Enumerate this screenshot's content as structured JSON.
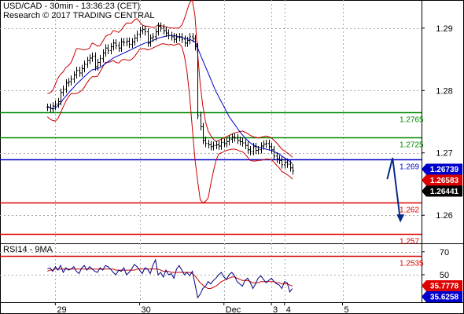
{
  "header": {
    "title": "USD/CAD - 30min - 13:36:23 (CET)",
    "copyright": "Research © 2017 TRADING CENTRAL"
  },
  "colors": {
    "support": "#dd0000",
    "resistance": "#008800",
    "pivot": "#0000cc",
    "price": "#000000",
    "bands": "#cc0000",
    "ma": "#0000cc",
    "rsi": "#000080",
    "rsi_ma": "#cc0000",
    "grid": "#aaaaaa"
  },
  "chart_data": [
    {
      "type": "line",
      "title": "USD/CAD - 30min",
      "ylim": [
        1.2555,
        1.2945
      ],
      "yticks": [
        1.29,
        1.28,
        1.27,
        1.26
      ],
      "ytick_labels": [
        "1.29",
        "1.28",
        "1.27",
        "1.26"
      ],
      "xaxis_labels": [
        {
          "label": "29",
          "x": 3
        },
        {
          "label": "30",
          "x": 35
        },
        {
          "label": "Dec",
          "x": 67
        },
        {
          "label": "3",
          "x": 85
        },
        {
          "label": "4",
          "x": 90
        },
        {
          "label": "5",
          "x": 112
        }
      ],
      "xlim": [
        -18,
        142
      ],
      "grid": true,
      "price_closes": [
        1.2773,
        1.2771,
        1.2775,
        1.2778,
        1.2782,
        1.2797,
        1.2802,
        1.2812,
        1.2814,
        1.2818,
        1.2825,
        1.2832,
        1.2828,
        1.2835,
        1.2842,
        1.2848,
        1.2852,
        1.2855,
        1.2838,
        1.2845,
        1.2851,
        1.286,
        1.2868,
        1.2864,
        1.287,
        1.2876,
        1.2872,
        1.2868,
        1.2878,
        1.2877,
        1.2879,
        1.2874,
        1.2878,
        1.2884,
        1.289,
        1.2896,
        1.2898,
        1.2894,
        1.2876,
        1.2884,
        1.2886,
        1.2894,
        1.2903,
        1.29,
        1.2896,
        1.2892,
        1.2888,
        1.2886,
        1.2882,
        1.2885,
        1.2886,
        1.2882,
        1.2876,
        1.288,
        1.2886,
        1.2883,
        1.287,
        1.276,
        1.2742,
        1.272,
        1.2715,
        1.2713,
        1.271,
        1.2712,
        1.2713,
        1.2711,
        1.2717,
        1.2715,
        1.2718,
        1.2722,
        1.2725,
        1.2724,
        1.272,
        1.2718,
        1.2716,
        1.2712,
        1.2705,
        1.2702,
        1.271,
        1.2704,
        1.2705,
        1.2711,
        1.2714,
        1.2715,
        1.271,
        1.2705,
        1.2695,
        1.269,
        1.2688,
        1.2681,
        1.2685,
        1.2682,
        1.2676,
        1.2671
      ],
      "upper_band": [
        1.2795,
        1.2796,
        1.28,
        1.281,
        1.282,
        1.2826,
        1.283,
        1.2837,
        1.284,
        1.2845,
        1.2855,
        1.2867,
        1.2867,
        1.2866,
        1.2865,
        1.2866,
        1.2868,
        1.2876,
        1.2874,
        1.2871,
        1.2872,
        1.2879,
        1.2886,
        1.2889,
        1.289,
        1.2896,
        1.2895,
        1.2893,
        1.2897,
        1.2903,
        1.2908,
        1.2908,
        1.2908,
        1.2913,
        1.2915,
        1.291,
        1.2905,
        1.2903,
        1.2903,
        1.2902,
        1.2901,
        1.2902,
        1.2905,
        1.2904,
        1.2903,
        1.2902,
        1.2901,
        1.29,
        1.29,
        1.29,
        1.29,
        1.2905,
        1.2915,
        1.2928,
        1.2941,
        1.2945,
        1.292,
        1.286,
        1.281,
        1.2775,
        1.275,
        1.2735,
        1.2728,
        1.2722,
        1.2718,
        1.272,
        1.2722,
        1.2724,
        1.2726,
        1.2728,
        1.273,
        1.2732,
        1.2733,
        1.2734,
        1.2735,
        1.2733,
        1.2731,
        1.2728,
        1.2726,
        1.2725,
        1.2724,
        1.2725,
        1.2726,
        1.2727,
        1.2726,
        1.2724,
        1.272,
        1.2716,
        1.2711,
        1.2706,
        1.2703,
        1.27,
        1.2697,
        1.2693
      ],
      "lower_band": [
        1.2758,
        1.2754,
        1.2752,
        1.2751,
        1.2755,
        1.2764,
        1.2774,
        1.2783,
        1.279,
        1.2795,
        1.2795,
        1.2795,
        1.2797,
        1.28,
        1.2805,
        1.2812,
        1.2818,
        1.2822,
        1.2822,
        1.2823,
        1.283,
        1.2838,
        1.2845,
        1.2845,
        1.2846,
        1.2848,
        1.2845,
        1.2844,
        1.2848,
        1.285,
        1.2849,
        1.2848,
        1.285,
        1.2854,
        1.286,
        1.2866,
        1.2867,
        1.2867,
        1.2865,
        1.2866,
        1.2868,
        1.287,
        1.2872,
        1.2874,
        1.2875,
        1.2874,
        1.2873,
        1.2874,
        1.2872,
        1.2874,
        1.2875,
        1.287,
        1.2855,
        1.283,
        1.279,
        1.274,
        1.269,
        1.2655,
        1.2625,
        1.262,
        1.2622,
        1.2628,
        1.265,
        1.267,
        1.2688,
        1.2698,
        1.27,
        1.2702,
        1.2704,
        1.2705,
        1.2706,
        1.2706,
        1.2705,
        1.2703,
        1.2702,
        1.2698,
        1.2693,
        1.2688,
        1.2687,
        1.2687,
        1.2688,
        1.2688,
        1.2689,
        1.269,
        1.269,
        1.2689,
        1.2685,
        1.268,
        1.2676,
        1.267,
        1.2668,
        1.2665,
        1.2662,
        1.2658
      ],
      "moving_average": [
        1.2775,
        1.2772,
        1.277,
        1.2772,
        1.2776,
        1.278,
        1.2786,
        1.2791,
        1.2796,
        1.2801,
        1.2805,
        1.281,
        1.2814,
        1.2818,
        1.2822,
        1.2826,
        1.283,
        1.2833,
        1.2834,
        1.2835,
        1.2837,
        1.284,
        1.2843,
        1.2846,
        1.2849,
        1.2852,
        1.2854,
        1.2856,
        1.2858,
        1.286,
        1.2862,
        1.2864,
        1.2866,
        1.2868,
        1.287,
        1.2872,
        1.2874,
        1.2876,
        1.2877,
        1.2878,
        1.288,
        1.2882,
        1.2884,
        1.2885,
        1.2886,
        1.2887,
        1.2888,
        1.2888,
        1.2888,
        1.2887,
        1.2886,
        1.2885,
        1.2884,
        1.2883,
        1.2882,
        1.288,
        1.2878,
        1.2868,
        1.2858,
        1.2848,
        1.2838,
        1.2828,
        1.2818,
        1.2808,
        1.2798,
        1.279,
        1.2782,
        1.2774,
        1.2766,
        1.2758,
        1.2752,
        1.2746,
        1.274,
        1.2734,
        1.2729,
        1.2724,
        1.272,
        1.2716,
        1.2713,
        1.2711,
        1.2709,
        1.2708,
        1.2707,
        1.2706,
        1.2705,
        1.2704,
        1.2702,
        1.27,
        1.2698,
        1.2695,
        1.2692,
        1.2689,
        1.2686,
        1.2683
      ],
      "levels": [
        {
          "value": 1.2765,
          "label": "1.2765",
          "kind": "resistance"
        },
        {
          "value": 1.2725,
          "label": "1.2725",
          "kind": "resistance"
        },
        {
          "value": 1.269,
          "label": "1.269",
          "kind": "pivot"
        },
        {
          "value": 1.262,
          "label": "1.262",
          "kind": "support"
        },
        {
          "value": 1.257,
          "label": "1.257",
          "kind": "support"
        },
        {
          "value": 1.2535,
          "label": "1.2535",
          "kind": "support"
        }
      ],
      "price_tags": [
        {
          "value": 1.26739,
          "label": "1.26739",
          "color": "#0000cc"
        },
        {
          "value": 1.26583,
          "label": "1.26583",
          "color": "#dd0000"
        },
        {
          "value": 1.26441,
          "label": "1.26441",
          "color": "#000000"
        }
      ],
      "scenario_arrow": [
        {
          "x": 129,
          "y": 1.2658
        },
        {
          "x": 131,
          "y": 1.2692
        },
        {
          "x": 134,
          "y": 1.259
        }
      ]
    },
    {
      "type": "line",
      "title": "RSI14 - 9MA",
      "ylim": [
        26,
        76
      ],
      "yticks": [
        70,
        50
      ],
      "ytick_labels": [
        "70",
        "50"
      ],
      "xlim": [
        -18,
        142
      ],
      "series": [
        {
          "name": "RSI14",
          "values": [
            55,
            56,
            53,
            57,
            54,
            58,
            52,
            56,
            54,
            55,
            57,
            53,
            51,
            56,
            58,
            54,
            57,
            55,
            53,
            52,
            56,
            54,
            58,
            57,
            55,
            52,
            50,
            54,
            53,
            56,
            50,
            52,
            55,
            59,
            57,
            54,
            51,
            56,
            55,
            51,
            58,
            63,
            50,
            52,
            48,
            54,
            50,
            51,
            47,
            55,
            58,
            54,
            50,
            52,
            49,
            53,
            42,
            30,
            33,
            38,
            40,
            44,
            42,
            45,
            47,
            50,
            52,
            48,
            46,
            50,
            52,
            49,
            44,
            42,
            40,
            45,
            47,
            43,
            38,
            42,
            47,
            49,
            46,
            43,
            45,
            47,
            44,
            42,
            41,
            38,
            44,
            43,
            35,
            38
          ]
        },
        {
          "name": "9MA",
          "values": [
            53,
            54,
            54,
            55,
            55,
            55,
            55,
            55,
            55,
            55,
            55,
            55,
            55,
            55,
            55,
            55,
            55,
            55,
            55,
            55,
            55,
            55,
            55,
            55,
            55,
            55,
            54,
            54,
            54,
            54,
            54,
            54,
            54,
            54,
            55,
            55,
            55,
            55,
            55,
            55,
            55,
            55,
            55,
            54,
            53,
            53,
            53,
            52,
            52,
            52,
            52,
            52,
            52,
            52,
            52,
            51,
            49,
            46,
            43,
            41,
            39,
            38,
            38,
            39,
            40,
            42,
            44,
            45,
            46,
            47,
            48,
            48,
            47,
            46,
            45,
            45,
            45,
            44,
            43,
            43,
            43,
            44,
            44,
            44,
            44,
            44,
            44,
            43,
            43,
            42,
            42,
            42,
            41,
            40
          ]
        }
      ],
      "price_tags": [
        {
          "value": 35.7778,
          "label": "35.7778",
          "color": "#dd0000"
        },
        {
          "value": 35.6258,
          "label": "35.6258",
          "color": "#0000cc"
        }
      ]
    }
  ]
}
